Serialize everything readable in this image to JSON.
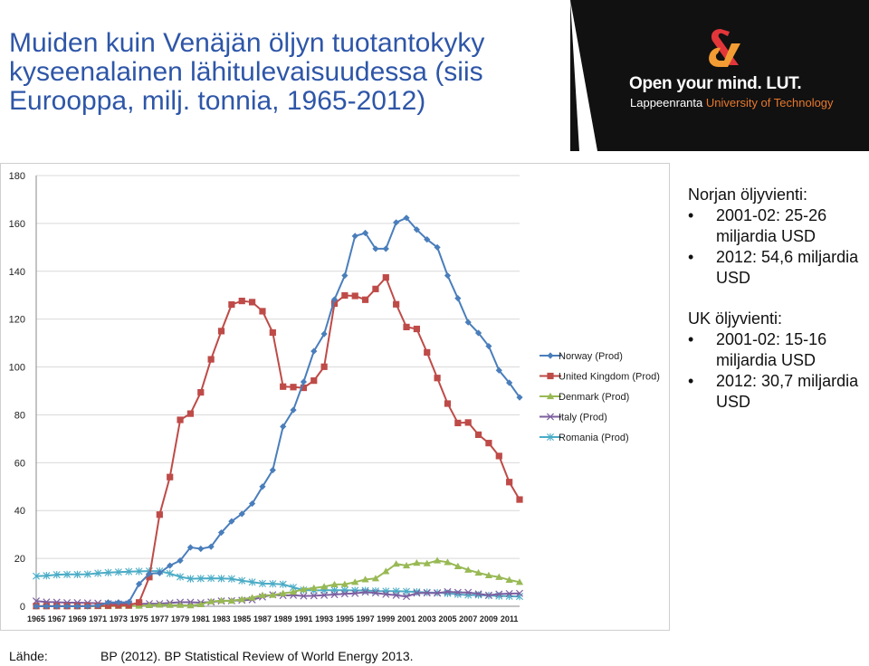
{
  "title": "Muiden kuin Venäjän öljyn tuotantokyky kyseenalainen lähitulevaisuudessa (siis Eurooppa, milj. tonnia, 1965-2012)",
  "logo": {
    "tagline": "Open your mind. LUT.",
    "university_name": "Lappeenranta",
    "university_sub": "University of Technology",
    "colors": {
      "background": "#111111",
      "mark_red": "#e2363a",
      "mark_orange": "#f39c33",
      "sub_text": "#e8782c"
    }
  },
  "notes": [
    {
      "heading": "Norjan öljyvienti:",
      "items": [
        "2001-02: 25-26 miljardia USD",
        "2012: 54,6 miljardia USD"
      ]
    },
    {
      "heading": "UK öljyvienti:",
      "items": [
        "2001-02: 15-16 miljardia USD",
        "2012: 30,7 miljardia USD"
      ]
    }
  ],
  "source": {
    "label": "Lähde:",
    "text": "BP (2012). BP Statistical Review of World Energy 2013."
  },
  "chart_data": {
    "type": "line",
    "xlim": [
      1965,
      2012
    ],
    "ylim": [
      0,
      180
    ],
    "y_ticks": [
      0,
      20,
      40,
      60,
      80,
      100,
      120,
      140,
      160,
      180
    ],
    "x_tick_labels": [
      "1965",
      "1967",
      "1969",
      "1971",
      "1973",
      "1975",
      "1977",
      "1979",
      "1981",
      "1983",
      "1985",
      "1987",
      "1989",
      "1991",
      "1993",
      "1995",
      "1997",
      "1999",
      "2001",
      "2003",
      "2005",
      "2007",
      "2009",
      "2011"
    ],
    "grid": "horizontal",
    "legend_position": "right",
    "x": [
      1965,
      1966,
      1967,
      1968,
      1969,
      1970,
      1971,
      1972,
      1973,
      1974,
      1975,
      1976,
      1977,
      1978,
      1979,
      1980,
      1981,
      1982,
      1983,
      1984,
      1985,
      1986,
      1987,
      1988,
      1989,
      1990,
      1991,
      1992,
      1993,
      1994,
      1995,
      1996,
      1997,
      1998,
      1999,
      2000,
      2001,
      2002,
      2003,
      2004,
      2005,
      2006,
      2007,
      2008,
      2009,
      2010,
      2011,
      2012
    ],
    "series": [
      {
        "name": "Norway (Prod)",
        "color": "#4a7ebb",
        "marker": "diamond",
        "values": [
          0,
          0,
          0,
          0,
          0,
          0,
          0.3,
          1.6,
          1.6,
          1.7,
          9.3,
          13.6,
          13.9,
          17.0,
          19.1,
          24.6,
          24.0,
          24.9,
          30.8,
          35.5,
          38.6,
          42.9,
          50.0,
          56.9,
          75.1,
          82.0,
          93.8,
          106.6,
          113.8,
          128.2,
          138.2,
          154.7,
          156.0,
          149.4,
          149.4,
          160.4,
          162.3,
          157.4,
          153.3,
          150.0,
          138.2,
          128.7,
          118.7,
          114.2,
          108.7,
          98.6,
          93.4,
          87.3
        ]
      },
      {
        "name": "United Kingdom (Prod)",
        "color": "#be4b48",
        "marker": "square",
        "values": [
          0.1,
          0.1,
          0.1,
          0.1,
          0.1,
          0.2,
          0.2,
          0.3,
          0.4,
          0.4,
          1.6,
          12.2,
          38.3,
          54.0,
          77.9,
          80.5,
          89.4,
          103.2,
          115.0,
          126.1,
          127.6,
          127.1,
          123.3,
          114.4,
          91.8,
          91.6,
          91.3,
          94.3,
          100.1,
          126.5,
          129.9,
          129.7,
          128.1,
          132.6,
          137.4,
          126.2,
          116.7,
          115.9,
          106.1,
          95.4,
          84.7,
          76.6,
          76.8,
          71.7,
          68.2,
          62.8,
          51.9,
          44.6
        ]
      },
      {
        "name": "Denmark (Prod)",
        "color": "#98b954",
        "marker": "triangle",
        "values": [
          0,
          0,
          0,
          0,
          0,
          0,
          0,
          0,
          0.1,
          0.1,
          0.2,
          0.4,
          0.6,
          0.5,
          0.5,
          0.3,
          0.8,
          2.0,
          2.4,
          2.3,
          2.9,
          3.6,
          4.6,
          4.7,
          5.4,
          6.0,
          7.1,
          7.6,
          8.2,
          9.1,
          9.2,
          10.1,
          11.2,
          11.6,
          14.6,
          17.7,
          17.0,
          18.1,
          17.9,
          19.1,
          18.4,
          16.7,
          15.2,
          14.0,
          12.9,
          12.2,
          11.0,
          10.1
        ]
      },
      {
        "name": "Italy (Prod)",
        "color": "#7d5fa0",
        "marker": "x",
        "values": [
          2.2,
          1.8,
          1.7,
          1.5,
          1.5,
          1.4,
          1.3,
          1.1,
          1.0,
          1.0,
          1.0,
          1.1,
          1.1,
          1.4,
          1.7,
          1.7,
          1.5,
          1.8,
          2.2,
          2.3,
          2.5,
          2.7,
          3.9,
          4.8,
          4.5,
          4.6,
          4.3,
          4.4,
          4.6,
          4.9,
          5.2,
          5.4,
          5.9,
          5.6,
          5.0,
          4.6,
          4.1,
          5.5,
          5.6,
          5.5,
          6.1,
          5.8,
          5.8,
          5.2,
          4.6,
          5.1,
          5.3,
          5.4
        ]
      },
      {
        "name": "Romania (Prod)",
        "color": "#4bacc6",
        "marker": "star",
        "values": [
          12.6,
          12.8,
          13.2,
          13.3,
          13.3,
          13.4,
          13.8,
          14.1,
          14.3,
          14.5,
          14.6,
          14.7,
          14.7,
          13.7,
          12.3,
          11.5,
          11.6,
          11.7,
          11.6,
          11.5,
          10.7,
          10.1,
          9.5,
          9.4,
          9.2,
          7.9,
          6.8,
          6.6,
          6.7,
          6.7,
          6.7,
          6.6,
          6.6,
          6.4,
          6.3,
          6.3,
          6.2,
          6.0,
          5.8,
          5.7,
          5.4,
          5.0,
          4.7,
          4.7,
          4.5,
          4.3,
          4.2,
          4.1
        ]
      }
    ]
  }
}
